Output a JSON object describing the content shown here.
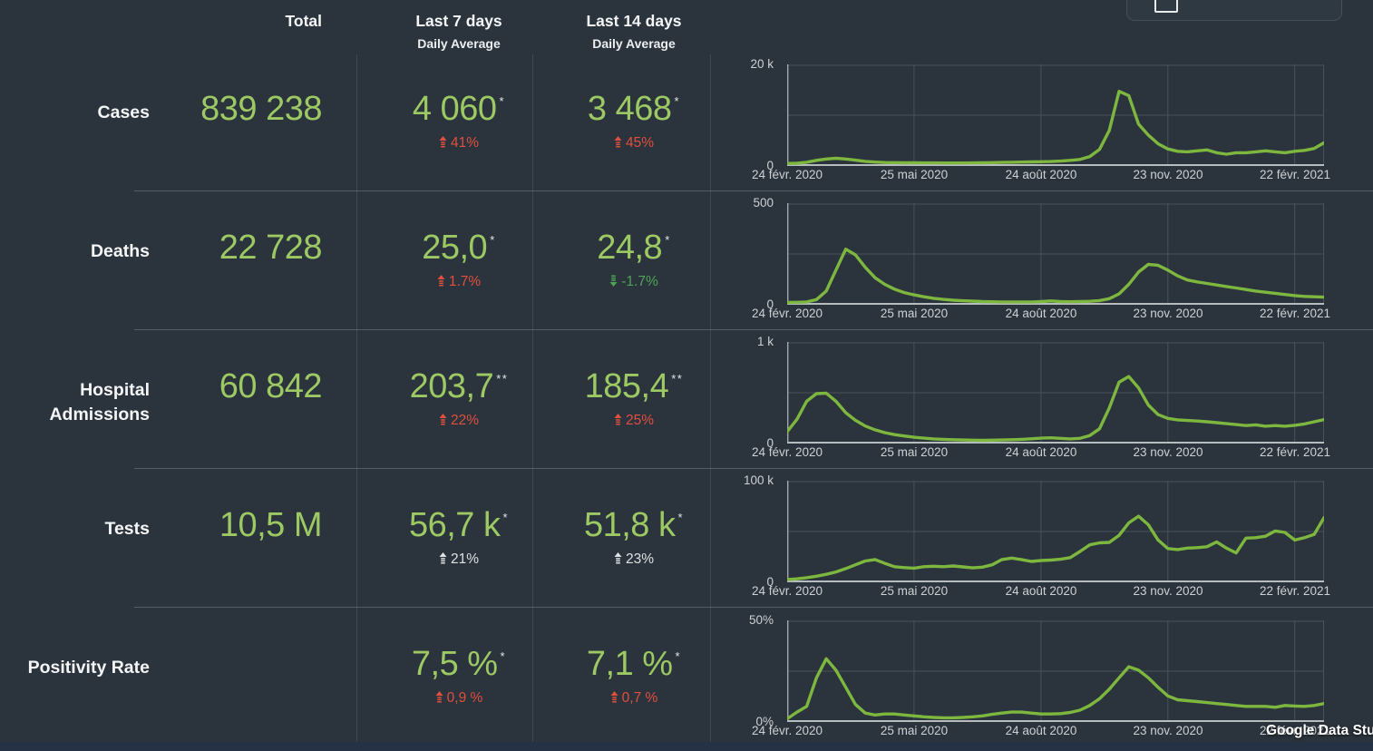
{
  "colors": {
    "background": "#2b333c",
    "value_green": "#9cc963",
    "line_green": "#7eb73f",
    "delta_red": "#e04f3f",
    "delta_green": "#4ea456",
    "delta_neutral": "#dfe1e2",
    "text": "#f4f5f6",
    "axis_text": "#ced1d3",
    "page_edge": "#253144"
  },
  "icons": {
    "delta_up": "striped-up-arrow",
    "delta_down": "striped-down-arrow",
    "toolbar": "image-frame-icon"
  },
  "header": {
    "total": "Total",
    "last7": "Last 7 days",
    "last14": "Last 14 days",
    "daily_average": "Daily Average"
  },
  "rows": [
    {
      "label": "Cases",
      "total": "839 238",
      "last7": {
        "value": "4 060",
        "asterisk": "*",
        "delta": "41%",
        "direction": "up",
        "tone": "bad"
      },
      "last14": {
        "value": "3 468",
        "asterisk": "*",
        "delta": "45%",
        "direction": "up",
        "tone": "bad"
      }
    },
    {
      "label": "Deaths",
      "total": "22 728",
      "last7": {
        "value": "25,0",
        "asterisk": "*",
        "delta": "1.7%",
        "direction": "up",
        "tone": "bad"
      },
      "last14": {
        "value": "24,8",
        "asterisk": "*",
        "delta": "-1.7%",
        "direction": "down",
        "tone": "good"
      }
    },
    {
      "label": "Hospital Admissions",
      "total": "60 842",
      "last7": {
        "value": "203,7",
        "asterisk": "**",
        "delta": "22%",
        "direction": "up",
        "tone": "bad"
      },
      "last14": {
        "value": "185,4",
        "asterisk": "**",
        "delta": "25%",
        "direction": "up",
        "tone": "bad"
      }
    },
    {
      "label": "Tests",
      "total": "10,5 M",
      "last7": {
        "value": "56,7 k",
        "asterisk": "*",
        "delta": "21%",
        "direction": "up",
        "tone": "neutral"
      },
      "last14": {
        "value": "51,8 k",
        "asterisk": "*",
        "delta": "23%",
        "direction": "up",
        "tone": "neutral"
      }
    },
    {
      "label": "Positivity Rate",
      "total": "",
      "last7": {
        "value": "7,5 %",
        "asterisk": "*",
        "delta": "0,9 %",
        "direction": "up",
        "tone": "bad"
      },
      "last14": {
        "value": "7,1 %",
        "asterisk": "*",
        "delta": "0,7 %",
        "direction": "up",
        "tone": "bad"
      }
    }
  ],
  "axis": {
    "dates": [
      "24 févr. 2020",
      "25 mai 2020",
      "24 août 2020",
      "23 nov. 2020",
      "22 févr. 2021"
    ]
  },
  "watermark": "Google Data Stu",
  "chart_data": [
    {
      "type": "line",
      "name": "Cases",
      "ylim": [
        0,
        20000
      ],
      "y_top_label": "20 k",
      "y_bottom_label": "0",
      "x_tick_labels": [
        "24 févr. 2020",
        "25 mai 2020",
        "24 août 2020",
        "23 nov. 2020",
        "22 févr. 2021"
      ],
      "legend": "none",
      "grid": "on",
      "values": [
        50,
        100,
        300,
        700,
        1000,
        1150,
        1000,
        750,
        500,
        350,
        250,
        220,
        200,
        190,
        180,
        170,
        160,
        150,
        160,
        180,
        200,
        230,
        260,
        300,
        340,
        380,
        420,
        450,
        550,
        700,
        900,
        1500,
        3000,
        7000,
        15200,
        14300,
        8300,
        6000,
        4200,
        3100,
        2600,
        2500,
        2700,
        2900,
        2300,
        2000,
        2300,
        2300,
        2500,
        2700,
        2500,
        2300,
        2600,
        2800,
        3200,
        4400
      ]
    },
    {
      "type": "line",
      "name": "Deaths",
      "ylim": [
        0,
        500
      ],
      "y_top_label": "500",
      "y_bottom_label": "0",
      "x_tick_labels": [
        "24 févr. 2020",
        "25 mai 2020",
        "24 août 2020",
        "23 nov. 2020",
        "22 févr. 2021"
      ],
      "legend": "none",
      "grid": "on",
      "values": [
        0,
        1,
        3,
        15,
        60,
        170,
        280,
        250,
        185,
        130,
        95,
        70,
        52,
        40,
        30,
        22,
        16,
        12,
        9,
        7,
        5,
        4,
        3,
        3,
        3,
        3,
        5,
        8,
        5,
        4,
        5,
        6,
        10,
        20,
        45,
        95,
        160,
        200,
        195,
        170,
        140,
        118,
        108,
        100,
        92,
        84,
        76,
        68,
        60,
        54,
        48,
        42,
        36,
        32,
        30,
        28
      ]
    },
    {
      "type": "line",
      "name": "Hospital Admissions",
      "ylim": [
        0,
        1000
      ],
      "y_top_label": "1 k",
      "y_bottom_label": "0",
      "x_tick_labels": [
        "24 févr. 2020",
        "25 mai 2020",
        "24 août 2020",
        "23 nov. 2020",
        "22 févr. 2021"
      ],
      "legend": "none",
      "grid": "on",
      "values": [
        100,
        230,
        420,
        500,
        505,
        420,
        300,
        220,
        160,
        120,
        90,
        70,
        55,
        42,
        32,
        25,
        20,
        16,
        13,
        11,
        10,
        11,
        13,
        16,
        20,
        26,
        32,
        36,
        30,
        25,
        30,
        60,
        130,
        350,
        620,
        680,
        560,
        380,
        280,
        240,
        225,
        218,
        212,
        205,
        195,
        185,
        175,
        165,
        172,
        158,
        165,
        158,
        168,
        182,
        205,
        228
      ]
    },
    {
      "type": "line",
      "name": "Tests",
      "ylim": [
        0,
        100000
      ],
      "y_top_label": "100 k",
      "y_bottom_label": "0",
      "x_tick_labels": [
        "24 févr. 2020",
        "25 mai 2020",
        "24 août 2020",
        "23 nov. 2020",
        "22 févr. 2021"
      ],
      "legend": "none",
      "grid": "on",
      "values": [
        500,
        1200,
        2500,
        4000,
        6000,
        8500,
        12000,
        16000,
        20000,
        21500,
        17500,
        14000,
        13000,
        12500,
        14000,
        14500,
        14000,
        14800,
        13800,
        12800,
        13500,
        16000,
        21500,
        23000,
        21500,
        19500,
        20500,
        21000,
        21800,
        23500,
        30000,
        37000,
        39000,
        39500,
        47000,
        60000,
        67000,
        58000,
        42000,
        33000,
        32000,
        33500,
        34000,
        35000,
        40000,
        33500,
        28500,
        44000,
        44500,
        46000,
        51500,
        50000,
        42000,
        44500,
        48000,
        65500
      ]
    },
    {
      "type": "line",
      "name": "Positivity Rate",
      "ylim": [
        0,
        50
      ],
      "y_top_label": "50%",
      "y_bottom_label": "0%",
      "x_tick_labels": [
        "24 févr. 2020",
        "25 mai 2020",
        "24 août 2020",
        "23 nov. 2020",
        "22 févr. 2021"
      ],
      "legend": "none",
      "grid": "on",
      "values": [
        0.5,
        4,
        7,
        22,
        32,
        26,
        17,
        8,
        3.5,
        2.5,
        3,
        3,
        2.5,
        2,
        1.5,
        1.2,
        1,
        1,
        1.2,
        1.5,
        2,
        2.8,
        3.5,
        4,
        4,
        3.5,
        3,
        3,
        3.2,
        3.8,
        5,
        7.5,
        11,
        16,
        22,
        27.8,
        26,
        22,
        17,
        12.5,
        10.5,
        10,
        9.5,
        9,
        8.5,
        8,
        7.5,
        7,
        7,
        7,
        6.5,
        7.5,
        7.2,
        7,
        7.5,
        8.5
      ]
    }
  ]
}
